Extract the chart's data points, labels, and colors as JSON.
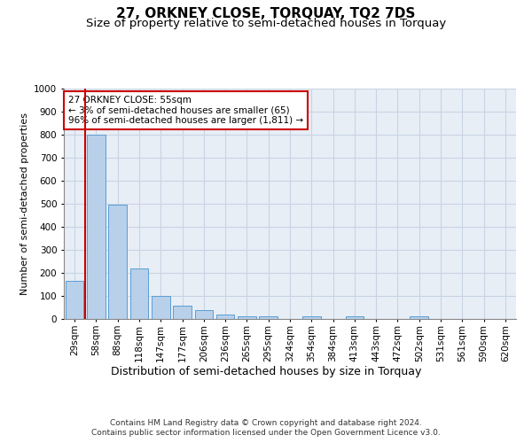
{
  "title": "27, ORKNEY CLOSE, TORQUAY, TQ2 7DS",
  "subtitle": "Size of property relative to semi-detached houses in Torquay",
  "xlabel": "Distribution of semi-detached houses by size in Torquay",
  "ylabel": "Number of semi-detached properties",
  "footer_line1": "Contains HM Land Registry data © Crown copyright and database right 2024.",
  "footer_line2": "Contains public sector information licensed under the Open Government Licence v3.0.",
  "categories": [
    "29sqm",
    "58sqm",
    "88sqm",
    "118sqm",
    "147sqm",
    "177sqm",
    "206sqm",
    "236sqm",
    "265sqm",
    "295sqm",
    "324sqm",
    "354sqm",
    "384sqm",
    "413sqm",
    "443sqm",
    "472sqm",
    "502sqm",
    "531sqm",
    "561sqm",
    "590sqm",
    "620sqm"
  ],
  "values": [
    165,
    800,
    497,
    218,
    100,
    57,
    38,
    18,
    10,
    10,
    0,
    10,
    0,
    10,
    0,
    0,
    10,
    0,
    0,
    0,
    0
  ],
  "bar_color": "#b8d0ea",
  "bar_edge_color": "#5a9fd4",
  "grid_color": "#c8d4e4",
  "background_color": "#e8eef6",
  "red_line_color": "#cc0000",
  "annotation_line1": "27 ORKNEY CLOSE: 55sqm",
  "annotation_line2": "← 3% of semi-detached houses are smaller (65)",
  "annotation_line3": "96% of semi-detached houses are larger (1,811) →",
  "annotation_box_color": "#ffffff",
  "annotation_box_edge_color": "#cc0000",
  "ylim": [
    0,
    1000
  ],
  "yticks": [
    0,
    100,
    200,
    300,
    400,
    500,
    600,
    700,
    800,
    900,
    1000
  ],
  "title_fontsize": 11,
  "subtitle_fontsize": 9.5,
  "xlabel_fontsize": 9,
  "ylabel_fontsize": 8,
  "tick_fontsize": 7.5,
  "annotation_fontsize": 7.5,
  "footer_fontsize": 6.5
}
